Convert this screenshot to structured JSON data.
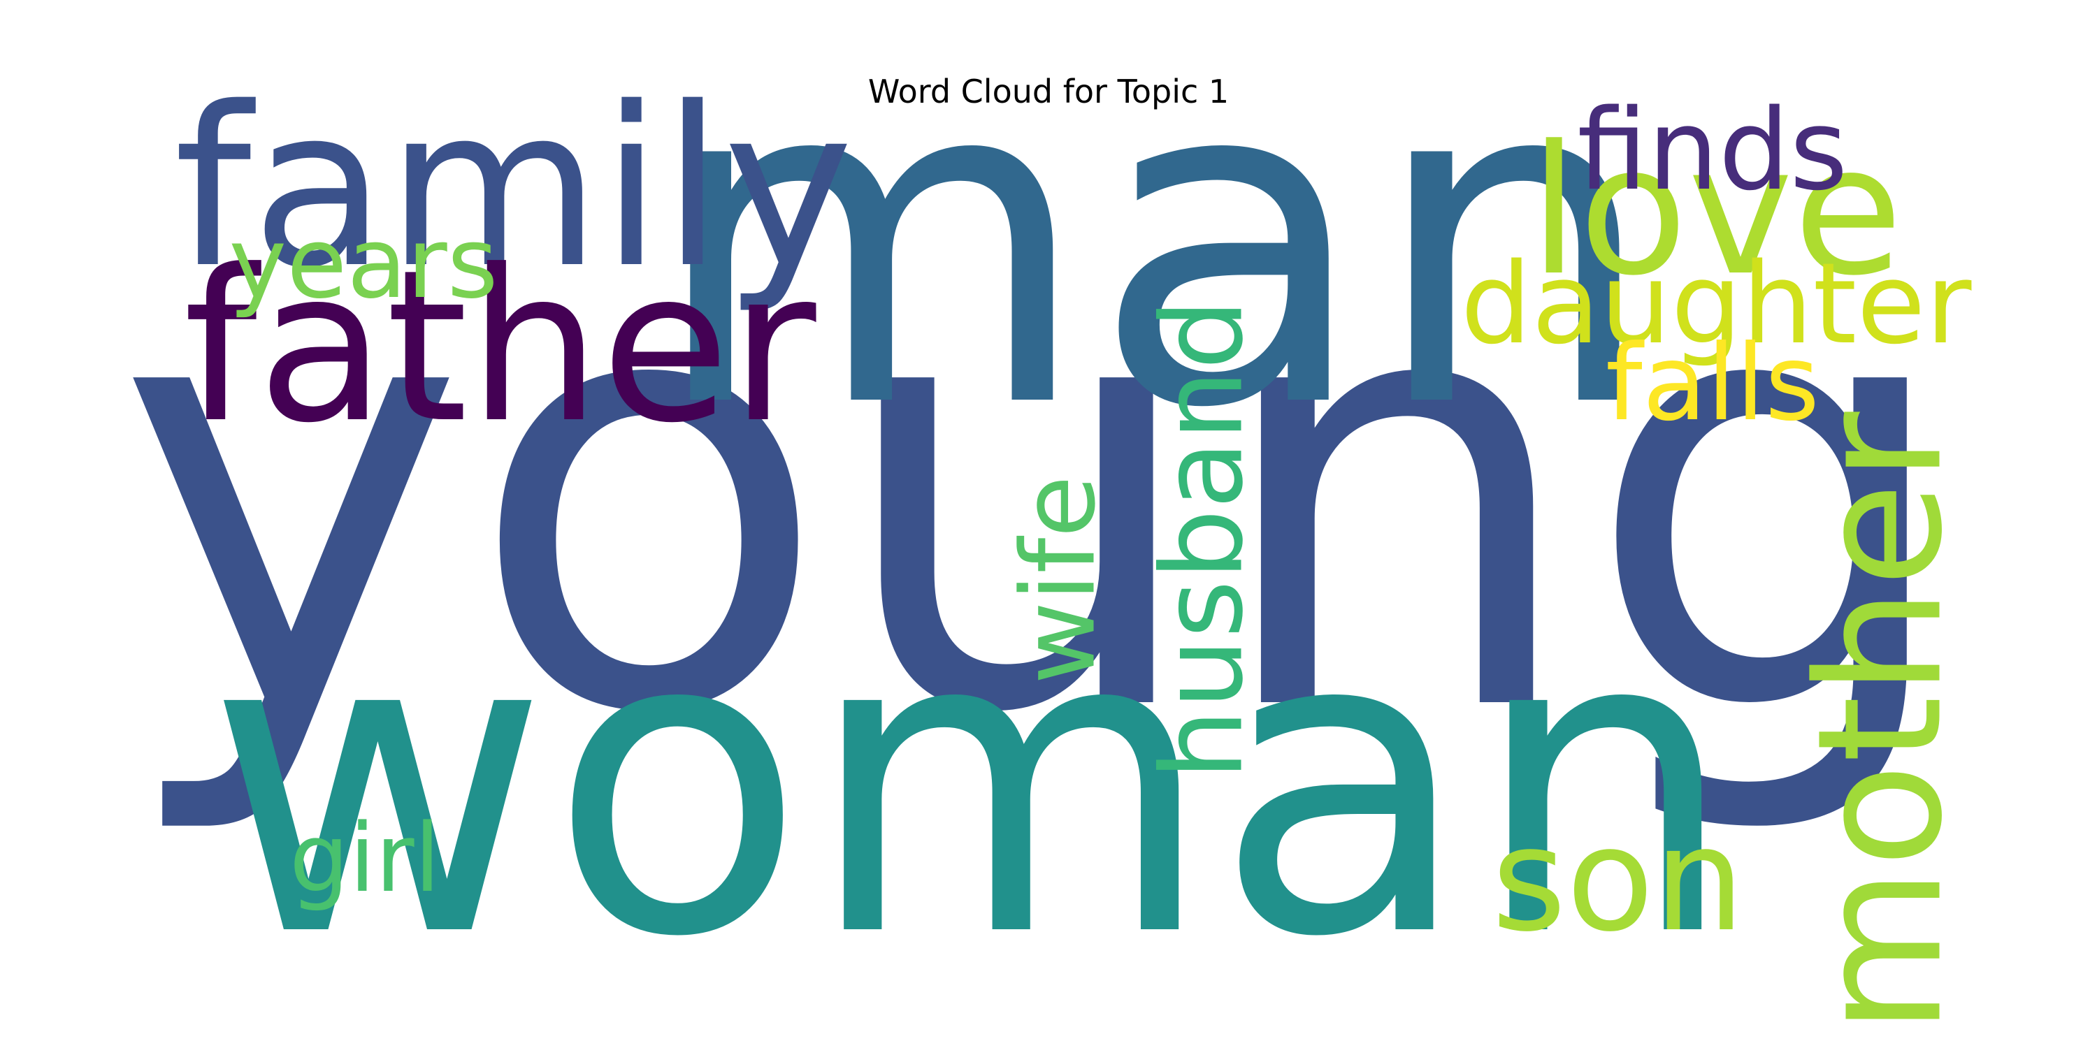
{
  "chart_data": {
    "type": "wordcloud",
    "title": "Word Cloud for Topic 1",
    "colormap": "viridis",
    "background": "#ffffff",
    "words": [
      {
        "text": "young",
        "size": 1.0,
        "color": "#3b528b",
        "orientation": "horizontal"
      },
      {
        "text": "man",
        "size": 0.77,
        "color": "#31688e",
        "orientation": "horizontal"
      },
      {
        "text": "woman",
        "size": 0.7,
        "color": "#21918c",
        "orientation": "horizontal"
      },
      {
        "text": "family",
        "size": 0.37,
        "color": "#3b528b",
        "orientation": "horizontal"
      },
      {
        "text": "father",
        "size": 0.35,
        "color": "#440154",
        "orientation": "horizontal"
      },
      {
        "text": "love",
        "size": 0.3,
        "color": "#addc30",
        "orientation": "horizontal"
      },
      {
        "text": "mother",
        "size": 0.29,
        "color": "#a0da39",
        "orientation": "vertical"
      },
      {
        "text": "son",
        "size": 0.24,
        "color": "#a5db36",
        "orientation": "horizontal"
      },
      {
        "text": "finds",
        "size": 0.19,
        "color": "#472d7b",
        "orientation": "horizontal"
      },
      {
        "text": "daughter",
        "size": 0.19,
        "color": "#d0e11c",
        "orientation": "horizontal"
      },
      {
        "text": "husband",
        "size": 0.19,
        "color": "#35b779",
        "orientation": "vertical"
      },
      {
        "text": "falls",
        "size": 0.18,
        "color": "#fde725",
        "orientation": "horizontal"
      },
      {
        "text": "wife",
        "size": 0.17,
        "color": "#54c568",
        "orientation": "vertical"
      },
      {
        "text": "years",
        "size": 0.16,
        "color": "#7ad151",
        "orientation": "horizontal"
      },
      {
        "text": "girl",
        "size": 0.16,
        "color": "#48c16e",
        "orientation": "horizontal"
      }
    ]
  }
}
